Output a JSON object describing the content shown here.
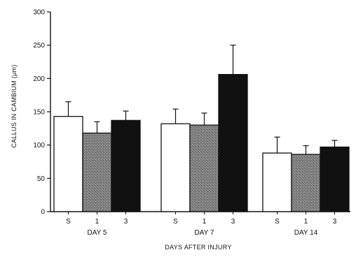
{
  "chart_data": {
    "type": "bar",
    "xlabel": "DAYS AFTER INJURY",
    "ylabel": "CALLUS IN CAMBIUM (μm)",
    "ylim": [
      0,
      300
    ],
    "yticks": [
      0,
      50,
      100,
      150,
      200,
      250,
      300
    ],
    "grid": false,
    "legend": "none",
    "groups": [
      {
        "label": "DAY 5",
        "bars": [
          {
            "label": "S",
            "value": 143,
            "error": 22,
            "color": "#ffffff"
          },
          {
            "label": "1",
            "value": 118,
            "error": 17,
            "color": "#8a8a8a"
          },
          {
            "label": "3",
            "value": 137,
            "error": 14,
            "color": "#111111"
          }
        ]
      },
      {
        "label": "DAY 7",
        "bars": [
          {
            "label": "S",
            "value": 132,
            "error": 22,
            "color": "#ffffff"
          },
          {
            "label": "1",
            "value": 130,
            "error": 18,
            "color": "#8a8a8a"
          },
          {
            "label": "3",
            "value": 206,
            "error": 44,
            "color": "#111111"
          }
        ]
      },
      {
        "label": "DAY 14",
        "bars": [
          {
            "label": "S",
            "value": 88,
            "error": 24,
            "color": "#ffffff"
          },
          {
            "label": "1",
            "value": 86,
            "error": 13,
            "color": "#8a8a8a"
          },
          {
            "label": "3",
            "value": 97,
            "error": 10,
            "color": "#111111"
          }
        ]
      }
    ]
  }
}
